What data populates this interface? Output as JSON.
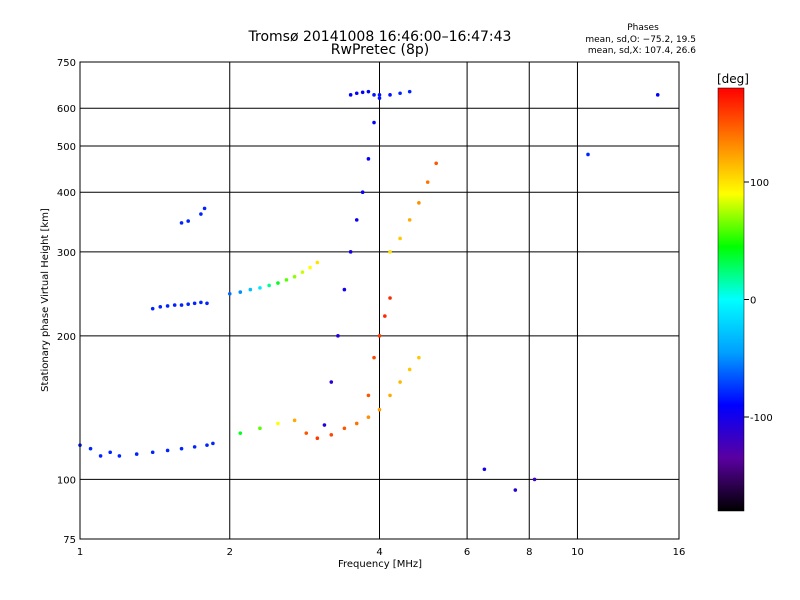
{
  "title": "Tromsø 20141008 16:46:00–16:47:43",
  "subtitle": "RwPretec (8p)",
  "phases": {
    "heading": "Phases",
    "line1": "mean, sd,O: −75.2, 19.5",
    "line2": "mean, sd,X: 107.4, 26.6"
  },
  "chart_data": {
    "type": "scatter",
    "title": "Tromsø 20141008 16:46:00–16:47:43",
    "subtitle": "RwPretec (8p)",
    "xlabel": "Frequency [MHz]",
    "ylabel": "Stationary phase Virtual Height [km]",
    "xscale": "log",
    "yscale": "log",
    "xlim": [
      1,
      16
    ],
    "ylim": [
      75,
      750
    ],
    "x_ticks": [
      1,
      2,
      4,
      6,
      8,
      10,
      16
    ],
    "y_ticks": [
      75,
      100,
      200,
      300,
      400,
      500,
      600,
      750
    ],
    "grid": true,
    "colorbar": {
      "label": "[deg]",
      "range": [
        -180,
        180
      ],
      "ticks": [
        100,
        0,
        -100
      ],
      "colors": [
        "#000000",
        "#5a00a0",
        "#0000ff",
        "#00a0ff",
        "#00ffff",
        "#00ff00",
        "#ffff00",
        "#ff8000",
        "#ff0000"
      ]
    },
    "series": [
      {
        "x": [
          1.0,
          1.05,
          1.1,
          1.15,
          1.2,
          1.3,
          1.4,
          1.5,
          1.6,
          1.7,
          1.8,
          1.85
        ],
        "y": [
          118,
          116,
          112,
          114,
          112,
          113,
          114,
          115,
          116,
          117,
          118,
          119
        ],
        "phase": [
          -80,
          -80,
          -80,
          -80,
          -80,
          -80,
          -80,
          -80,
          -80,
          -80,
          -80,
          -80
        ]
      },
      {
        "x": [
          1.4,
          1.45,
          1.5,
          1.55,
          1.6,
          1.65,
          1.7,
          1.75,
          1.8
        ],
        "y": [
          228,
          230,
          231,
          232,
          232,
          233,
          234,
          235,
          234
        ],
        "phase": [
          -80,
          -80,
          -80,
          -80,
          -80,
          -80,
          -80,
          -80,
          -80
        ]
      },
      {
        "x": [
          1.6,
          1.65,
          1.75,
          1.78
        ],
        "y": [
          345,
          348,
          360,
          370
        ],
        "phase": [
          -80,
          -80,
          -80,
          -80
        ]
      },
      {
        "x": [
          2.0,
          2.1,
          2.2,
          2.3,
          2.4,
          2.5,
          2.6,
          2.7,
          2.8,
          2.9,
          3.0
        ],
        "y": [
          245,
          247,
          250,
          252,
          255,
          258,
          262,
          266,
          272,
          278,
          285
        ],
        "phase": [
          -60,
          -50,
          -30,
          -10,
          20,
          40,
          60,
          70,
          80,
          90,
          100
        ]
      },
      {
        "x": [
          2.1,
          2.3,
          2.5,
          2.7,
          2.85,
          3.0,
          3.2,
          3.4,
          3.6,
          3.8,
          4.0,
          4.2,
          4.4,
          4.6,
          4.8
        ],
        "y": [
          125,
          128,
          131,
          133,
          125,
          122,
          124,
          128,
          131,
          135,
          140,
          150,
          160,
          170,
          180
        ],
        "phase": [
          40,
          60,
          90,
          120,
          150,
          160,
          155,
          150,
          140,
          130,
          125,
          120,
          115,
          110,
          110
        ]
      },
      {
        "x": [
          3.1,
          3.2,
          3.3,
          3.4,
          3.5,
          3.6,
          3.7,
          3.8,
          3.9,
          4.0
        ],
        "y": [
          130,
          160,
          200,
          250,
          300,
          350,
          400,
          470,
          560,
          640
        ],
        "phase": [
          -110,
          -110,
          -105,
          -100,
          -100,
          -95,
          -95,
          -90,
          -90,
          -85
        ]
      },
      {
        "x": [
          3.5,
          3.6,
          3.7,
          3.8,
          3.9,
          4.0,
          4.2,
          4.4,
          4.6
        ],
        "y": [
          640,
          645,
          648,
          650,
          640,
          630,
          640,
          645,
          650
        ],
        "phase": [
          -90,
          -90,
          -90,
          -90,
          -85,
          -85,
          -85,
          -80,
          -80
        ]
      },
      {
        "x": [
          4.2,
          4.4,
          4.6,
          4.8,
          5.0,
          5.2
        ],
        "y": [
          300,
          320,
          350,
          380,
          420,
          460
        ],
        "phase": [
          100,
          110,
          120,
          130,
          140,
          150
        ]
      },
      {
        "x": [
          3.8,
          3.9,
          4.0,
          4.1,
          4.2
        ],
        "y": [
          150,
          180,
          200,
          220,
          240
        ],
        "phase": [
          150,
          155,
          160,
          165,
          165
        ]
      },
      {
        "x": [
          6.5,
          7.5,
          8.2,
          10.5,
          14.5
        ],
        "y": [
          105,
          95,
          100,
          480,
          640
        ],
        "phase": [
          -100,
          -110,
          -120,
          -80,
          -90
        ]
      }
    ]
  }
}
